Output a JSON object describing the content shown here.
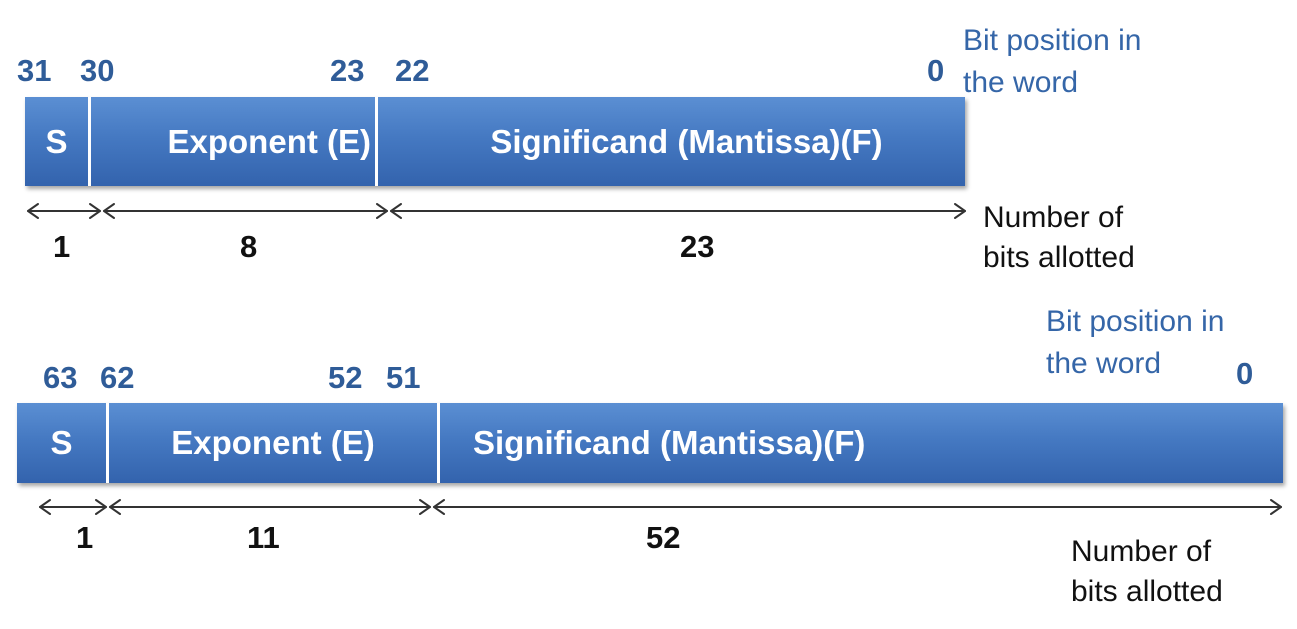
{
  "single": {
    "positions": {
      "p31": "31",
      "p30": "30",
      "p23": "23",
      "p22": "22",
      "p0": "0"
    },
    "note_position": [
      "Bit position in",
      "the word"
    ],
    "fields": {
      "sign": "S",
      "exponent": "Exponent (E)",
      "significand": "Significand (Mantissa)(F)"
    },
    "counts": {
      "sign": "1",
      "exponent": "8",
      "significand": "23"
    },
    "note_bits": [
      "Number of",
      "bits allotted"
    ]
  },
  "double": {
    "positions": {
      "p63": "63",
      "p62": "62",
      "p52": "52",
      "p51": "51",
      "p0": "0"
    },
    "note_position": [
      "Bit position in",
      "the word"
    ],
    "fields": {
      "sign": "S",
      "exponent": "Exponent (E)",
      "significand": "Significand (Mantissa)(F)"
    },
    "counts": {
      "sign": "1",
      "exponent": "11",
      "significand": "52"
    },
    "note_bits": [
      "Number of",
      "bits allotted"
    ]
  },
  "colors": {
    "bar": "#4579c2",
    "position_text": "#2f5c98",
    "note_text": "#3566a8",
    "arrow": "#333333"
  }
}
